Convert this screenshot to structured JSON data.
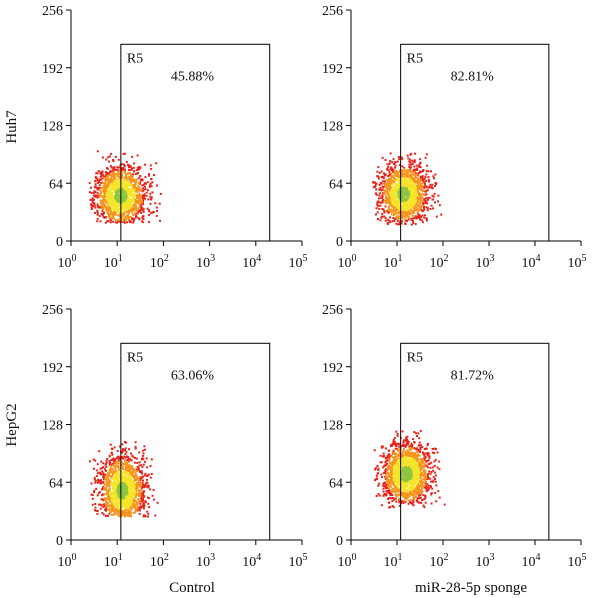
{
  "chart_data": [
    {
      "type": "scatter",
      "row": "Huh7",
      "column": "Control",
      "x_scale": "log",
      "xlim": [
        1,
        100000
      ],
      "ylim": [
        0,
        256
      ],
      "x_ticks": [
        {
          "base": "10",
          "exp": "0"
        },
        {
          "base": "10",
          "exp": "1"
        },
        {
          "base": "10",
          "exp": "2"
        },
        {
          "base": "10",
          "exp": "3"
        },
        {
          "base": "10",
          "exp": "4"
        },
        {
          "base": "10",
          "exp": "5"
        }
      ],
      "y_ticks": [
        "0",
        "64",
        "128",
        "192",
        "256"
      ],
      "gate": {
        "name": "R5",
        "x_range": [
          12,
          20000
        ],
        "y_range": [
          0,
          218
        ]
      },
      "gate_percent": "45.88%",
      "cloud": {
        "center_x": 12,
        "center_y": 50,
        "spread_x_decades": 0.28,
        "spread_y": 17,
        "y_min": 20,
        "y_max": 100,
        "x_min": 2.5,
        "x_max": 90,
        "n": 1500,
        "seed": 11
      }
    },
    {
      "type": "scatter",
      "row": "Huh7",
      "column": "miR-28-5p sponge",
      "x_scale": "log",
      "xlim": [
        1,
        100000
      ],
      "ylim": [
        0,
        256
      ],
      "x_ticks": [
        {
          "base": "10",
          "exp": "0"
        },
        {
          "base": "10",
          "exp": "1"
        },
        {
          "base": "10",
          "exp": "2"
        },
        {
          "base": "10",
          "exp": "3"
        },
        {
          "base": "10",
          "exp": "4"
        },
        {
          "base": "10",
          "exp": "5"
        }
      ],
      "y_ticks": [
        "0",
        "64",
        "128",
        "192",
        "256"
      ],
      "gate": {
        "name": "R5",
        "x_range": [
          12,
          20000
        ],
        "y_range": [
          0,
          218
        ]
      },
      "gate_percent": "82.81%",
      "cloud": {
        "center_x": 14,
        "center_y": 52,
        "spread_x_decades": 0.27,
        "spread_y": 17,
        "y_min": 18,
        "y_max": 98,
        "x_min": 3,
        "x_max": 100,
        "n": 1500,
        "seed": 23
      }
    },
    {
      "type": "scatter",
      "row": "HepG2",
      "column": "Control",
      "x_scale": "log",
      "xlim": [
        1,
        100000
      ],
      "ylim": [
        0,
        256
      ],
      "x_ticks": [
        {
          "base": "10",
          "exp": "0"
        },
        {
          "base": "10",
          "exp": "1"
        },
        {
          "base": "10",
          "exp": "2"
        },
        {
          "base": "10",
          "exp": "3"
        },
        {
          "base": "10",
          "exp": "4"
        },
        {
          "base": "10",
          "exp": "5"
        }
      ],
      "y_ticks": [
        "0",
        "64",
        "128",
        "192",
        "256"
      ],
      "gate": {
        "name": "R5",
        "x_range": [
          12,
          20000
        ],
        "y_range": [
          0,
          218
        ]
      },
      "gate_percent": "63.06%",
      "cloud": {
        "center_x": 13,
        "center_y": 55,
        "spread_x_decades": 0.25,
        "spread_y": 20,
        "y_min": 26,
        "y_max": 112,
        "x_min": 2.5,
        "x_max": 90,
        "n": 1500,
        "seed": 37
      }
    },
    {
      "type": "scatter",
      "row": "HepG2",
      "column": "miR-28-5p sponge",
      "x_scale": "log",
      "xlim": [
        1,
        100000
      ],
      "ylim": [
        0,
        256
      ],
      "x_ticks": [
        {
          "base": "10",
          "exp": "0"
        },
        {
          "base": "10",
          "exp": "1"
        },
        {
          "base": "10",
          "exp": "2"
        },
        {
          "base": "10",
          "exp": "3"
        },
        {
          "base": "10",
          "exp": "4"
        },
        {
          "base": "10",
          "exp": "5"
        }
      ],
      "y_ticks": [
        "0",
        "64",
        "128",
        "192",
        "256"
      ],
      "gate": {
        "name": "R5",
        "x_range": [
          12,
          20000
        ],
        "y_range": [
          0,
          218
        ]
      },
      "gate_percent": "81.72%",
      "cloud": {
        "center_x": 16,
        "center_y": 73,
        "spread_x_decades": 0.27,
        "spread_y": 18,
        "y_min": 36,
        "y_max": 122,
        "x_min": 3,
        "x_max": 110,
        "n": 1500,
        "seed": 51
      }
    }
  ],
  "row_labels": [
    "Huh7",
    "HepG2"
  ],
  "column_labels": [
    "Control",
    "miR-28-5p sponge"
  ],
  "colors": {
    "axis": "#000000",
    "gate": "#000000",
    "density_low": "#e8221b",
    "density_mid": "#f7941d",
    "density_high": "#f4e52a",
    "density_peak": "#8dc63f"
  }
}
